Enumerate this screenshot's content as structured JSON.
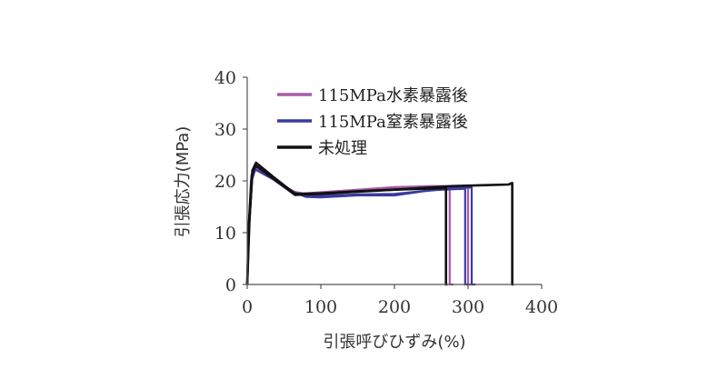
{
  "chart_data": {
    "type": "line",
    "title": "",
    "xlabel": "引張呼びひずみ(%)",
    "ylabel": "引張応力(MPa)",
    "xlim": [
      0,
      400
    ],
    "ylim": [
      0,
      40
    ],
    "xticks": [
      0,
      100,
      200,
      300,
      400
    ],
    "yticks": [
      0,
      10,
      20,
      30,
      40
    ],
    "grid": false,
    "legend_position": "top-right (inside plot)",
    "series": [
      {
        "name": "115MPa水素暴露後",
        "color": "#a85aa8",
        "curves": [
          [
            [
              0,
              0
            ],
            [
              2,
              10
            ],
            [
              5,
              20
            ],
            [
              10,
              23
            ],
            [
              30,
              21
            ],
            [
              50,
              19
            ],
            [
              70,
              17.5
            ],
            [
              100,
              17.8
            ],
            [
              150,
              18.3
            ],
            [
              200,
              18.8
            ],
            [
              250,
              19.0
            ],
            [
              275,
              19.0
            ],
            [
              275,
              0
            ],
            [
              280,
              0
            ]
          ],
          [
            [
              0,
              0
            ],
            [
              3,
              12
            ],
            [
              7,
              21
            ],
            [
              12,
              22.5
            ],
            [
              35,
              20.5
            ],
            [
              60,
              18
            ],
            [
              90,
              17.2
            ],
            [
              150,
              18.0
            ],
            [
              200,
              18.5
            ],
            [
              250,
              18.8
            ],
            [
              300,
              18.8
            ],
            [
              300,
              0
            ],
            [
              305,
              0
            ]
          ]
        ]
      },
      {
        "name": "115MPa窒素暴露後",
        "color": "#3a3aa0",
        "curves": [
          [
            [
              0,
              0
            ],
            [
              3,
              12
            ],
            [
              7,
              21
            ],
            [
              12,
              22.8
            ],
            [
              35,
              20.5
            ],
            [
              60,
              18
            ],
            [
              80,
              16.9
            ],
            [
              100,
              16.8
            ],
            [
              150,
              17.2
            ],
            [
              200,
              17.2
            ],
            [
              240,
              18
            ],
            [
              280,
              18.6
            ],
            [
              300,
              18.7
            ],
            [
              305,
              18.7
            ],
            [
              305,
              0
            ],
            [
              310,
              0
            ]
          ],
          [
            [
              0,
              0
            ],
            [
              2,
              11
            ],
            [
              6,
              20
            ],
            [
              11,
              22.2
            ],
            [
              35,
              20.3
            ],
            [
              60,
              17.8
            ],
            [
              90,
              17.0
            ],
            [
              150,
              17.4
            ],
            [
              200,
              17.5
            ],
            [
              250,
              18.2
            ],
            [
              296,
              18.5
            ],
            [
              296,
              0
            ],
            [
              300,
              0
            ]
          ]
        ]
      },
      {
        "name": "未処理",
        "color": "#111111",
        "curves": [
          [
            [
              0,
              0
            ],
            [
              3,
              12
            ],
            [
              7,
              22
            ],
            [
              12,
              23.5
            ],
            [
              35,
              20.8
            ],
            [
              65,
              17.5
            ],
            [
              100,
              17.6
            ],
            [
              150,
              18.0
            ],
            [
              200,
              18.3
            ],
            [
              270,
              18.6
            ],
            [
              270,
              0
            ],
            [
              272,
              0
            ]
          ],
          [
            [
              0,
              0
            ],
            [
              2,
              11
            ],
            [
              6,
              21
            ],
            [
              11,
              23
            ],
            [
              35,
              20.5
            ],
            [
              65,
              17.3
            ],
            [
              100,
              17.5
            ],
            [
              200,
              18.3
            ],
            [
              280,
              19.0
            ],
            [
              330,
              19.2
            ],
            [
              355,
              19.3
            ],
            [
              360,
              19.6
            ],
            [
              360,
              0
            ],
            [
              362,
              0
            ]
          ]
        ]
      }
    ]
  }
}
